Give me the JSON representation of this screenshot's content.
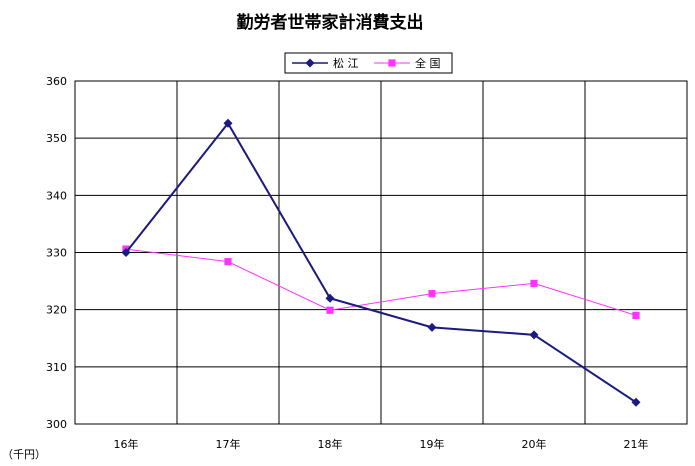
{
  "chart_data": {
    "type": "line",
    "title": "勤労者世帯家計消費支出",
    "unit_label": "（千円）",
    "categories": [
      "16年",
      "17年",
      "18年",
      "19年",
      "20年",
      "21年"
    ],
    "ylim": [
      300,
      360
    ],
    "yticks": [
      "300",
      "310",
      "320",
      "330",
      "340",
      "350",
      "360"
    ],
    "grid": true,
    "legend_position": "top",
    "series": [
      {
        "name": "松 江",
        "values": [
          330.0,
          352.6,
          322.0,
          316.9,
          315.6,
          303.8
        ],
        "color": "#1a1a80",
        "marker": "diamond"
      },
      {
        "name": "全 国",
        "values": [
          330.6,
          328.4,
          319.9,
          322.8,
          324.6,
          319.0
        ],
        "color": "#ff33ff",
        "marker": "square"
      }
    ]
  }
}
